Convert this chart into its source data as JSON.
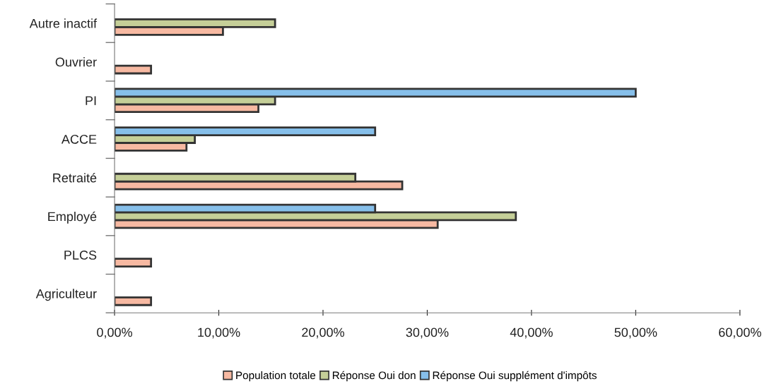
{
  "chart_data": {
    "type": "bar",
    "orientation": "horizontal",
    "categories": [
      "Autre inactif",
      "Ouvrier",
      "PI",
      "ACCE",
      "Retraité",
      "Employé",
      "PLCS",
      "Agriculteur"
    ],
    "series": [
      {
        "name": "Population totale",
        "color": "#f7b9a2",
        "values": [
          10.4,
          3.5,
          13.8,
          6.9,
          27.6,
          31.0,
          3.5,
          3.5
        ]
      },
      {
        "name": "Réponse Oui don",
        "color": "#c5cf98",
        "values": [
          15.4,
          null,
          15.4,
          7.7,
          23.1,
          38.5,
          null,
          null
        ]
      },
      {
        "name": "Réponse Oui supplément d'impôts",
        "color": "#86bfea",
        "values": [
          null,
          null,
          50.0,
          25.0,
          null,
          25.0,
          null,
          null
        ]
      }
    ],
    "xlim": [
      0,
      60
    ],
    "xticks": [
      {
        "value": 0,
        "label": "0,00%"
      },
      {
        "value": 10,
        "label": "10,00%"
      },
      {
        "value": 20,
        "label": "20,00%"
      },
      {
        "value": 30,
        "label": "30,00%"
      },
      {
        "value": 40,
        "label": "40,00%"
      },
      {
        "value": 50,
        "label": "50,00%"
      },
      {
        "value": 60,
        "label": "60,00%"
      }
    ],
    "grid": false,
    "legend": "bottom"
  }
}
